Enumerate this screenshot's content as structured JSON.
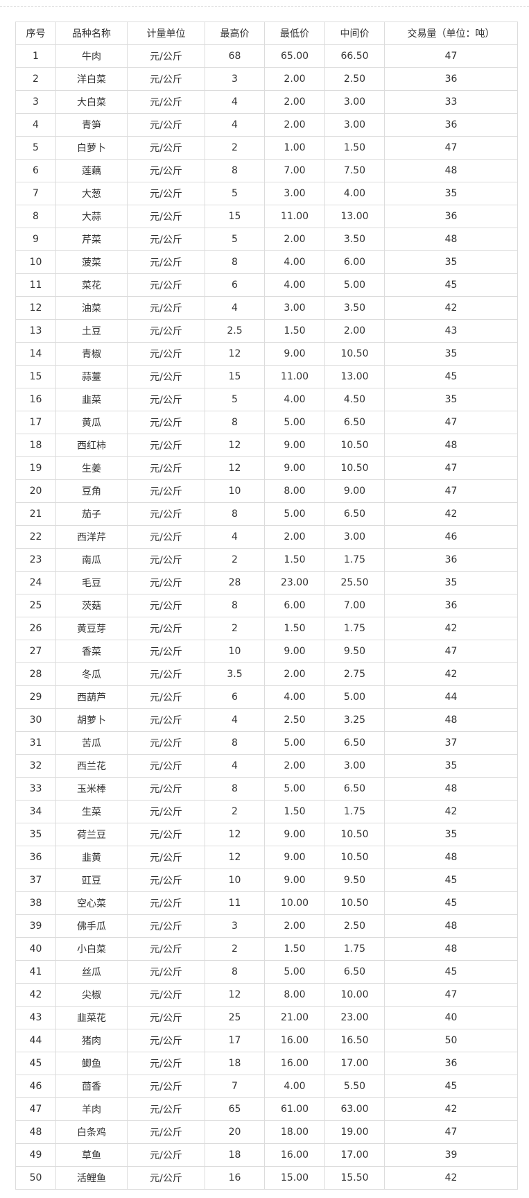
{
  "headers": [
    "序号",
    "品种名称",
    "计量单位",
    "最高价",
    "最低价",
    "中间价",
    "交易量（单位：吨）"
  ],
  "rows": [
    [
      "1",
      "牛肉",
      "元/公斤",
      "68",
      "65.00",
      "66.50",
      "47"
    ],
    [
      "2",
      "洋白菜",
      "元/公斤",
      "3",
      "2.00",
      "2.50",
      "36"
    ],
    [
      "3",
      "大白菜",
      "元/公斤",
      "4",
      "2.00",
      "3.00",
      "33"
    ],
    [
      "4",
      "青笋",
      "元/公斤",
      "4",
      "2.00",
      "3.00",
      "36"
    ],
    [
      "5",
      "白萝卜",
      "元/公斤",
      "2",
      "1.00",
      "1.50",
      "47"
    ],
    [
      "6",
      "莲藕",
      "元/公斤",
      "8",
      "7.00",
      "7.50",
      "48"
    ],
    [
      "7",
      "大葱",
      "元/公斤",
      "5",
      "3.00",
      "4.00",
      "35"
    ],
    [
      "8",
      "大蒜",
      "元/公斤",
      "15",
      "11.00",
      "13.00",
      "36"
    ],
    [
      "9",
      "芹菜",
      "元/公斤",
      "5",
      "2.00",
      "3.50",
      "48"
    ],
    [
      "10",
      "菠菜",
      "元/公斤",
      "8",
      "4.00",
      "6.00",
      "35"
    ],
    [
      "11",
      "菜花",
      "元/公斤",
      "6",
      "4.00",
      "5.00",
      "45"
    ],
    [
      "12",
      "油菜",
      "元/公斤",
      "4",
      "3.00",
      "3.50",
      "42"
    ],
    [
      "13",
      "土豆",
      "元/公斤",
      "2.5",
      "1.50",
      "2.00",
      "43"
    ],
    [
      "14",
      "青椒",
      "元/公斤",
      "12",
      "9.00",
      "10.50",
      "35"
    ],
    [
      "15",
      "蒜薹",
      "元/公斤",
      "15",
      "11.00",
      "13.00",
      "45"
    ],
    [
      "16",
      "韭菜",
      "元/公斤",
      "5",
      "4.00",
      "4.50",
      "35"
    ],
    [
      "17",
      "黄瓜",
      "元/公斤",
      "8",
      "5.00",
      "6.50",
      "47"
    ],
    [
      "18",
      "西红柿",
      "元/公斤",
      "12",
      "9.00",
      "10.50",
      "48"
    ],
    [
      "19",
      "生姜",
      "元/公斤",
      "12",
      "9.00",
      "10.50",
      "47"
    ],
    [
      "20",
      "豆角",
      "元/公斤",
      "10",
      "8.00",
      "9.00",
      "47"
    ],
    [
      "21",
      "茄子",
      "元/公斤",
      "8",
      "5.00",
      "6.50",
      "42"
    ],
    [
      "22",
      "西洋芹",
      "元/公斤",
      "4",
      "2.00",
      "3.00",
      "46"
    ],
    [
      "23",
      "南瓜",
      "元/公斤",
      "2",
      "1.50",
      "1.75",
      "36"
    ],
    [
      "24",
      "毛豆",
      "元/公斤",
      "28",
      "23.00",
      "25.50",
      "35"
    ],
    [
      "25",
      "茨菇",
      "元/公斤",
      "8",
      "6.00",
      "7.00",
      "36"
    ],
    [
      "26",
      "黄豆芽",
      "元/公斤",
      "2",
      "1.50",
      "1.75",
      "42"
    ],
    [
      "27",
      "香菜",
      "元/公斤",
      "10",
      "9.00",
      "9.50",
      "47"
    ],
    [
      "28",
      "冬瓜",
      "元/公斤",
      "3.5",
      "2.00",
      "2.75",
      "42"
    ],
    [
      "29",
      "西葫芦",
      "元/公斤",
      "6",
      "4.00",
      "5.00",
      "44"
    ],
    [
      "30",
      "胡萝卜",
      "元/公斤",
      "4",
      "2.50",
      "3.25",
      "48"
    ],
    [
      "31",
      "苦瓜",
      "元/公斤",
      "8",
      "5.00",
      "6.50",
      "37"
    ],
    [
      "32",
      "西兰花",
      "元/公斤",
      "4",
      "2.00",
      "3.00",
      "35"
    ],
    [
      "33",
      "玉米棒",
      "元/公斤",
      "8",
      "5.00",
      "6.50",
      "48"
    ],
    [
      "34",
      "生菜",
      "元/公斤",
      "2",
      "1.50",
      "1.75",
      "42"
    ],
    [
      "35",
      "荷兰豆",
      "元/公斤",
      "12",
      "9.00",
      "10.50",
      "35"
    ],
    [
      "36",
      "韭黄",
      "元/公斤",
      "12",
      "9.00",
      "10.50",
      "48"
    ],
    [
      "37",
      "豇豆",
      "元/公斤",
      "10",
      "9.00",
      "9.50",
      "45"
    ],
    [
      "38",
      "空心菜",
      "元/公斤",
      "11",
      "10.00",
      "10.50",
      "45"
    ],
    [
      "39",
      "佛手瓜",
      "元/公斤",
      "3",
      "2.00",
      "2.50",
      "48"
    ],
    [
      "40",
      "小白菜",
      "元/公斤",
      "2",
      "1.50",
      "1.75",
      "48"
    ],
    [
      "41",
      "丝瓜",
      "元/公斤",
      "8",
      "5.00",
      "6.50",
      "45"
    ],
    [
      "42",
      "尖椒",
      "元/公斤",
      "12",
      "8.00",
      "10.00",
      "47"
    ],
    [
      "43",
      "韭菜花",
      "元/公斤",
      "25",
      "21.00",
      "23.00",
      "40"
    ],
    [
      "44",
      "猪肉",
      "元/公斤",
      "17",
      "16.00",
      "16.50",
      "50"
    ],
    [
      "45",
      "鲫鱼",
      "元/公斤",
      "18",
      "16.00",
      "17.00",
      "36"
    ],
    [
      "46",
      "茴香",
      "元/公斤",
      "7",
      "4.00",
      "5.50",
      "45"
    ],
    [
      "47",
      "羊肉",
      "元/公斤",
      "65",
      "61.00",
      "63.00",
      "42"
    ],
    [
      "48",
      "白条鸡",
      "元/公斤",
      "20",
      "18.00",
      "19.00",
      "47"
    ],
    [
      "49",
      "草鱼",
      "元/公斤",
      "18",
      "16.00",
      "17.00",
      "39"
    ],
    [
      "50",
      "活鲤鱼",
      "元/公斤",
      "16",
      "15.00",
      "15.50",
      "42"
    ]
  ]
}
